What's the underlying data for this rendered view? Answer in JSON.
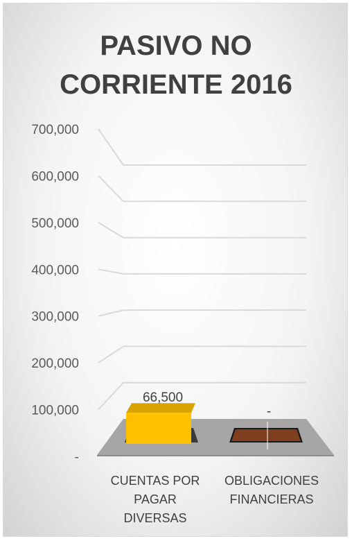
{
  "chart_data": {
    "type": "bar",
    "title_lines": [
      "PASIVO NO",
      "CORRIENTE 2016"
    ],
    "categories": [
      [
        "CUENTAS POR",
        "PAGAR",
        "DIVERSAS"
      ],
      [
        "OBLIGACIONES",
        "FINANCIERAS"
      ]
    ],
    "values": [
      66500,
      0
    ],
    "data_labels": [
      "66,500",
      "-"
    ],
    "y_ticks": [
      "-",
      "100,000",
      "200,000",
      "300,000",
      "400,000",
      "500,000",
      "600,000",
      "700,000"
    ],
    "ylim": [
      0,
      700000
    ],
    "grid": true,
    "legend": "none",
    "colors": {
      "bar_front": "#ffc000",
      "bar_top": "#d9a300",
      "bar_dark": "#7f3f1f",
      "floor": "#a6a6a6",
      "grid": "#d9d9d9"
    }
  }
}
